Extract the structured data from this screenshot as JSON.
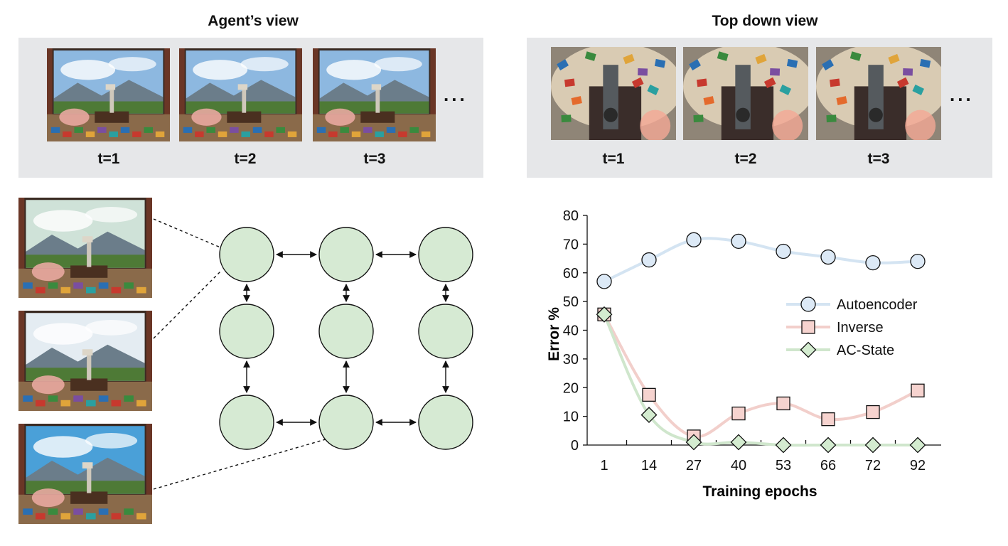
{
  "agent_view": {
    "title": "Agent’s view",
    "frame_labels": [
      "t=1",
      "t=2",
      "t=3"
    ],
    "ellipsis": "..."
  },
  "top_down_view": {
    "title": "Top down view",
    "frame_labels": [
      "t=1",
      "t=2",
      "t=3"
    ],
    "ellipsis": "..."
  },
  "graph": {
    "rows": 3,
    "cols": 3,
    "node_color": "#d6ead3"
  },
  "chart_data": {
    "type": "line",
    "xlabel": "Training epochs",
    "ylabel": "Error %",
    "categories": [
      "1",
      "14",
      "27",
      "40",
      "53",
      "66",
      "72",
      "92"
    ],
    "ylim": [
      0,
      80
    ],
    "yticks": [
      0,
      10,
      20,
      30,
      40,
      50,
      60,
      70,
      80
    ],
    "legend_position": "right",
    "series": [
      {
        "name": "Autoencoder",
        "marker": "circle",
        "line_color": "#d4e4f2",
        "fill": "#dce9f6",
        "values": [
          57,
          64.5,
          71.5,
          71,
          67.5,
          65.5,
          63.5,
          64
        ]
      },
      {
        "name": "Inverse",
        "marker": "square",
        "line_color": "#f2cfcb",
        "fill": "#f6d3cf",
        "values": [
          45.5,
          17.5,
          3,
          11,
          14.5,
          9,
          11.5,
          19
        ]
      },
      {
        "name": "AC-State",
        "marker": "diamond",
        "line_color": "#cfe6cc",
        "fill": "#d4ecd0",
        "values": [
          45.5,
          10.5,
          1,
          1,
          0,
          0,
          0,
          0
        ]
      }
    ]
  }
}
